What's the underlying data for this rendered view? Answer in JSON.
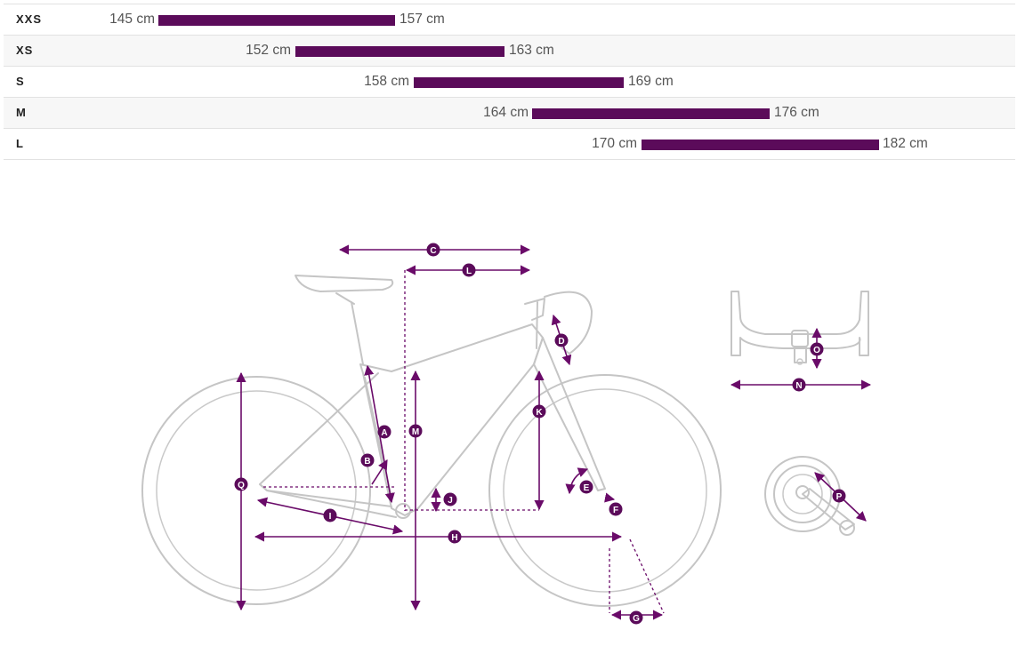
{
  "sizes": [
    {
      "name": "XXS",
      "min": "145 cm",
      "max": "157 cm",
      "min_cm": 145,
      "max_cm": 157
    },
    {
      "name": "XS",
      "min": "152 cm",
      "max": "163 cm",
      "min_cm": 152,
      "max_cm": 163
    },
    {
      "name": "S",
      "min": "158 cm",
      "max": "169 cm",
      "min_cm": 158,
      "max_cm": 169
    },
    {
      "name": "M",
      "min": "164 cm",
      "max": "176 cm",
      "min_cm": 164,
      "max_cm": 176
    },
    {
      "name": "L",
      "min": "170 cm",
      "max": "182 cm",
      "min_cm": 170,
      "max_cm": 182
    }
  ],
  "colors": {
    "accent": "#5b0b5a",
    "bike_outline": "#c5c5c5",
    "row_alt": "#f7f7f7"
  },
  "geometry_labels": {
    "A": "A",
    "B": "B",
    "C": "C",
    "D": "D",
    "E": "E",
    "F": "F",
    "G": "G",
    "H": "H",
    "I": "I",
    "J": "J",
    "K": "K",
    "L": "L",
    "M": "M",
    "N": "N",
    "O": "O",
    "P": "P",
    "Q": "Q"
  }
}
